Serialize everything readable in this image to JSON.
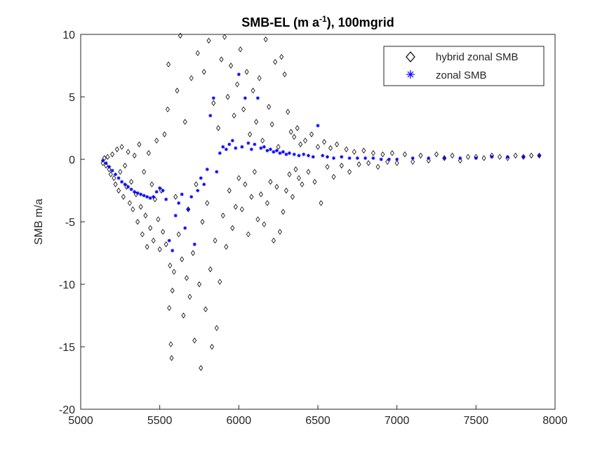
{
  "chart_data": {
    "type": "scatter",
    "title_main": "SMB-EL (m a",
    "title_sup": "-1",
    "title_tail": "), 100mgrid",
    "xlabel": "",
    "ylabel": "SMB m/a",
    "xlim": [
      5000,
      8000
    ],
    "ylim": [
      -20,
      10
    ],
    "x_ticks": [
      5000,
      5500,
      6000,
      6500,
      7000,
      7500,
      8000
    ],
    "y_ticks": [
      -20,
      -15,
      -10,
      -5,
      0,
      5,
      10
    ],
    "x_tick_labels": [
      "5000",
      "5500",
      "6000",
      "6500",
      "7000",
      "7500",
      "8000"
    ],
    "y_tick_labels": [
      "-20",
      "-15",
      "-10",
      "-5",
      "0",
      "5",
      "10"
    ],
    "grid": false,
    "legend_position": "top-right",
    "series": [
      {
        "name": "hybrid zonal SMB",
        "marker": "diamond",
        "color": "#000000",
        "points": [
          [
            5140,
            -0.3
          ],
          [
            5150,
            0.1
          ],
          [
            5160,
            -0.5
          ],
          [
            5170,
            0.2
          ],
          [
            5180,
            -0.8
          ],
          [
            5190,
            -1.2
          ],
          [
            5200,
            0.4
          ],
          [
            5210,
            -1.5
          ],
          [
            5220,
            -2.0
          ],
          [
            5230,
            0.8
          ],
          [
            5240,
            -2.5
          ],
          [
            5250,
            -1.0
          ],
          [
            5260,
            1.0
          ],
          [
            5270,
            -3.0
          ],
          [
            5280,
            -0.5
          ],
          [
            5290,
            -2.2
          ],
          [
            5300,
            0.6
          ],
          [
            5310,
            -3.5
          ],
          [
            5320,
            -1.8
          ],
          [
            5330,
            -4.0
          ],
          [
            5340,
            0.3
          ],
          [
            5350,
            -2.8
          ],
          [
            5360,
            -5.0
          ],
          [
            5370,
            1.2
          ],
          [
            5380,
            -3.8
          ],
          [
            5390,
            -6.0
          ],
          [
            5400,
            -1.0
          ],
          [
            5410,
            -4.5
          ],
          [
            5420,
            -7.0
          ],
          [
            5430,
            0.5
          ],
          [
            5440,
            -5.5
          ],
          [
            5450,
            -2.0
          ],
          [
            5460,
            -6.5
          ],
          [
            5470,
            -3.2
          ],
          [
            5480,
            1.5
          ],
          [
            5490,
            -4.8
          ],
          [
            5500,
            -7.2
          ],
          [
            5510,
            -2.5
          ],
          [
            5520,
            -5.8
          ],
          [
            5530,
            2.0
          ],
          [
            5540,
            -6.8
          ],
          [
            5550,
            4.0
          ],
          [
            5555,
            7.6
          ],
          [
            5560,
            -11.9
          ],
          [
            5565,
            -8.5
          ],
          [
            5570,
            -14.8
          ],
          [
            5575,
            -15.9
          ],
          [
            5580,
            -10.5
          ],
          [
            5590,
            -9.0
          ],
          [
            5600,
            -3.0
          ],
          [
            5610,
            5.5
          ],
          [
            5620,
            -6.0
          ],
          [
            5630,
            9.9
          ],
          [
            5640,
            -8.0
          ],
          [
            5650,
            -12.5
          ],
          [
            5660,
            3.0
          ],
          [
            5670,
            -9.5
          ],
          [
            5680,
            -4.0
          ],
          [
            5690,
            -11.0
          ],
          [
            5700,
            6.5
          ],
          [
            5710,
            -7.5
          ],
          [
            5720,
            -14.5
          ],
          [
            5730,
            -2.0
          ],
          [
            5740,
            8.5
          ],
          [
            5750,
            -10.0
          ],
          [
            5760,
            -16.7
          ],
          [
            5770,
            -5.0
          ],
          [
            5780,
            7.0
          ],
          [
            5790,
            -12.0
          ],
          [
            5800,
            -3.5
          ],
          [
            5810,
            9.5
          ],
          [
            5820,
            -8.8
          ],
          [
            5830,
            -15.0
          ],
          [
            5840,
            4.5
          ],
          [
            5850,
            -6.5
          ],
          [
            5860,
            -13.5
          ],
          [
            5870,
            2.5
          ],
          [
            5880,
            -9.8
          ],
          [
            5890,
            8.0
          ],
          [
            5900,
            -4.5
          ],
          [
            5910,
            9.8
          ],
          [
            5920,
            -7.0
          ],
          [
            5930,
            5.0
          ],
          [
            5940,
            -2.5
          ],
          [
            5950,
            7.5
          ],
          [
            5960,
            -5.5
          ],
          [
            5970,
            3.5
          ],
          [
            5980,
            -3.8
          ],
          [
            5990,
            6.0
          ],
          [
            6000,
            -1.5
          ],
          [
            6010,
            8.8
          ],
          [
            6020,
            -4.0
          ],
          [
            6030,
            4.0
          ],
          [
            6040,
            -2.0
          ],
          [
            6050,
            7.0
          ],
          [
            6060,
            -6.0
          ],
          [
            6070,
            2.0
          ],
          [
            6080,
            -3.0
          ],
          [
            6090,
            5.5
          ],
          [
            6100,
            -1.0
          ],
          [
            6110,
            3.0
          ],
          [
            6120,
            -4.8
          ],
          [
            6130,
            6.5
          ],
          [
            6140,
            -2.8
          ],
          [
            6150,
            1.5
          ],
          [
            6160,
            -5.2
          ],
          [
            6170,
            9.6
          ],
          [
            6180,
            -3.5
          ],
          [
            6190,
            4.2
          ],
          [
            6200,
            -1.8
          ],
          [
            6210,
            2.8
          ],
          [
            6220,
            -6.5
          ],
          [
            6230,
            7.8
          ],
          [
            6240,
            -2.2
          ],
          [
            6250,
            1.0
          ],
          [
            6260,
            -5.8
          ],
          [
            6270,
            8.2
          ],
          [
            6280,
            -4.2
          ],
          [
            6290,
            6.8
          ],
          [
            6300,
            -2.5
          ],
          [
            6310,
            3.8
          ],
          [
            6320,
            -1.2
          ],
          [
            6330,
            2.2
          ],
          [
            6340,
            -3.0
          ],
          [
            6350,
            1.8
          ],
          [
            6360,
            -0.8
          ],
          [
            6370,
            2.5
          ],
          [
            6380,
            -1.5
          ],
          [
            6390,
            1.2
          ],
          [
            6400,
            -2.0
          ],
          [
            6420,
            1.5
          ],
          [
            6440,
            -1.0
          ],
          [
            6460,
            2.0
          ],
          [
            6480,
            -1.8
          ],
          [
            6500,
            1.0
          ],
          [
            6520,
            -3.5
          ],
          [
            6540,
            1.4
          ],
          [
            6560,
            -0.6
          ],
          [
            6580,
            0.9
          ],
          [
            6600,
            -1.4
          ],
          [
            6620,
            1.2
          ],
          [
            6650,
            -0.5
          ],
          [
            6680,
            0.8
          ],
          [
            6700,
            -1.0
          ],
          [
            6730,
            0.6
          ],
          [
            6760,
            -0.4
          ],
          [
            6790,
            0.7
          ],
          [
            6820,
            -0.3
          ],
          [
            6850,
            0.5
          ],
          [
            6880,
            -0.6
          ],
          [
            6910,
            0.4
          ],
          [
            6940,
            -0.2
          ],
          [
            6970,
            0.5
          ],
          [
            7000,
            -0.3
          ],
          [
            7050,
            0.4
          ],
          [
            7100,
            -0.2
          ],
          [
            7150,
            0.3
          ],
          [
            7200,
            -0.1
          ],
          [
            7250,
            0.4
          ],
          [
            7300,
            0.1
          ],
          [
            7350,
            0.3
          ],
          [
            7400,
            -0.1
          ],
          [
            7450,
            0.2
          ],
          [
            7500,
            0.2
          ],
          [
            7550,
            0.1
          ],
          [
            7600,
            0.3
          ],
          [
            7650,
            0.2
          ],
          [
            7700,
            0.1
          ],
          [
            7750,
            0.3
          ],
          [
            7800,
            0.2
          ],
          [
            7850,
            0.3
          ],
          [
            7900,
            0.3
          ]
        ]
      },
      {
        "name": "zonal SMB",
        "marker": "asterisk",
        "color": "#0000ff",
        "points": [
          [
            5140,
            -0.1
          ],
          [
            5160,
            -0.3
          ],
          [
            5180,
            -0.6
          ],
          [
            5200,
            -0.9
          ],
          [
            5220,
            -1.2
          ],
          [
            5240,
            -1.5
          ],
          [
            5260,
            -1.8
          ],
          [
            5280,
            -2.0
          ],
          [
            5300,
            -2.2
          ],
          [
            5320,
            -2.4
          ],
          [
            5340,
            -2.6
          ],
          [
            5360,
            -2.7
          ],
          [
            5380,
            -2.8
          ],
          [
            5400,
            -2.9
          ],
          [
            5420,
            -3.0
          ],
          [
            5440,
            -3.1
          ],
          [
            5460,
            -3.0
          ],
          [
            5480,
            -2.6
          ],
          [
            5500,
            -2.3
          ],
          [
            5520,
            -2.5
          ],
          [
            5540,
            -3.2
          ],
          [
            5560,
            -6.5
          ],
          [
            5580,
            -7.3
          ],
          [
            5600,
            -4.5
          ],
          [
            5620,
            -3.5
          ],
          [
            5640,
            -2.8
          ],
          [
            5660,
            -5.5
          ],
          [
            5680,
            -4.0
          ],
          [
            5700,
            -3.0
          ],
          [
            5720,
            -6.8
          ],
          [
            5740,
            -2.5
          ],
          [
            5760,
            -1.5
          ],
          [
            5780,
            -2.0
          ],
          [
            5800,
            -0.8
          ],
          [
            5820,
            3.5
          ],
          [
            5840,
            4.9
          ],
          [
            5860,
            -1.0
          ],
          [
            5880,
            0.5
          ],
          [
            5900,
            1.0
          ],
          [
            5920,
            0.8
          ],
          [
            5940,
            1.2
          ],
          [
            5960,
            1.5
          ],
          [
            5980,
            0.9
          ],
          [
            6000,
            6.8
          ],
          [
            6020,
            1.0
          ],
          [
            6040,
            4.9
          ],
          [
            6060,
            1.3
          ],
          [
            6080,
            0.8
          ],
          [
            6100,
            1.2
          ],
          [
            6120,
            4.9
          ],
          [
            6140,
            0.9
          ],
          [
            6160,
            1.0
          ],
          [
            6180,
            0.7
          ],
          [
            6200,
            0.8
          ],
          [
            6220,
            0.6
          ],
          [
            6240,
            0.7
          ],
          [
            6260,
            0.5
          ],
          [
            6280,
            0.6
          ],
          [
            6300,
            0.4
          ],
          [
            6320,
            0.5
          ],
          [
            6350,
            0.4
          ],
          [
            6380,
            0.3
          ],
          [
            6410,
            0.4
          ],
          [
            6440,
            0.3
          ],
          [
            6470,
            0.2
          ],
          [
            6500,
            2.7
          ],
          [
            6530,
            0.3
          ],
          [
            6560,
            0.2
          ],
          [
            6600,
            0.1
          ],
          [
            6650,
            0.2
          ],
          [
            6700,
            0.1
          ],
          [
            6750,
            0.1
          ],
          [
            6800,
            0.1
          ],
          [
            6850,
            0.1
          ],
          [
            6900,
            0.0
          ],
          [
            6950,
            0.0
          ],
          [
            7000,
            0.0
          ],
          [
            7100,
            0.1
          ],
          [
            7200,
            0.1
          ],
          [
            7300,
            0.1
          ],
          [
            7400,
            0.1
          ],
          [
            7500,
            0.1
          ],
          [
            7600,
            0.2
          ],
          [
            7700,
            0.2
          ],
          [
            7800,
            0.2
          ],
          [
            7900,
            0.3
          ]
        ]
      }
    ]
  }
}
